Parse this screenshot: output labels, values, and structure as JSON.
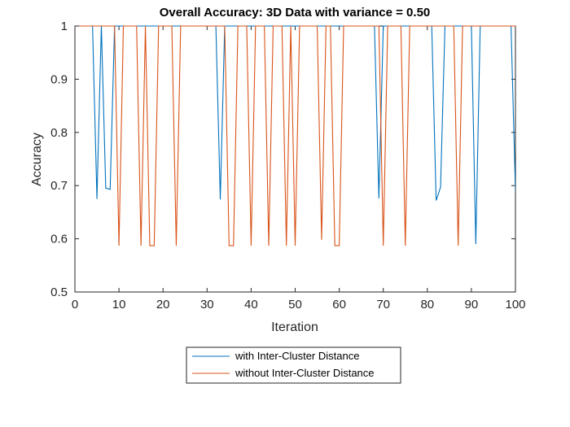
{
  "chart_data": {
    "type": "line",
    "title": "Overall Accuracy: 3D Data with variance = 0.50",
    "xlabel": "Iteration",
    "ylabel": "Accuracy",
    "xlim": [
      0,
      100
    ],
    "ylim": [
      0.5,
      1
    ],
    "xticks": [
      0,
      10,
      20,
      30,
      40,
      50,
      60,
      70,
      80,
      90,
      100
    ],
    "yticks": [
      0.5,
      0.6,
      0.7,
      0.8,
      0.9,
      1
    ],
    "xtick_labels": [
      "0",
      "10",
      "20",
      "30",
      "40",
      "50",
      "60",
      "70",
      "80",
      "90",
      "100"
    ],
    "ytick_labels": [
      "0.5",
      "0.6",
      "0.7",
      "0.8",
      "0.9",
      "1"
    ],
    "grid": false,
    "legend_position": "bottom-outside",
    "series": [
      {
        "name": "with Inter-Cluster Distance",
        "color": "#0072BD",
        "x": [
          1,
          2,
          3,
          4,
          5,
          6,
          7,
          8,
          9,
          10,
          11,
          12,
          13,
          14,
          15,
          16,
          17,
          18,
          19,
          20,
          21,
          22,
          23,
          24,
          25,
          26,
          27,
          28,
          29,
          30,
          31,
          32,
          33,
          34,
          35,
          36,
          37,
          38,
          39,
          40,
          41,
          42,
          43,
          44,
          45,
          46,
          47,
          48,
          49,
          50,
          51,
          52,
          53,
          54,
          55,
          56,
          57,
          58,
          59,
          60,
          61,
          62,
          63,
          64,
          65,
          66,
          67,
          68,
          69,
          70,
          71,
          72,
          73,
          74,
          75,
          76,
          77,
          78,
          79,
          80,
          81,
          82,
          83,
          84,
          85,
          86,
          87,
          88,
          89,
          90,
          91,
          92,
          93,
          94,
          95,
          96,
          97,
          98,
          99,
          100
        ],
        "y": [
          1,
          1,
          1,
          1,
          0.675,
          1,
          0.695,
          0.693,
          1,
          1,
          1,
          1,
          1,
          1,
          1,
          1,
          1,
          1,
          1,
          1,
          1,
          1,
          1,
          1,
          1,
          1,
          1,
          1,
          1,
          1,
          1,
          1,
          0.674,
          1,
          1,
          1,
          1,
          1,
          1,
          1,
          1,
          1,
          1,
          1,
          1,
          1,
          1,
          1,
          1,
          1,
          1,
          1,
          1,
          1,
          1,
          1,
          1,
          1,
          1,
          1,
          1,
          1,
          1,
          1,
          1,
          1,
          1,
          1,
          0.676,
          1,
          1,
          1,
          1,
          1,
          1,
          1,
          1,
          1,
          1,
          1,
          1,
          0.672,
          0.697,
          1,
          1,
          1,
          1,
          1,
          1,
          1,
          0.59,
          1,
          1,
          1,
          1,
          1,
          1,
          1,
          1,
          0.69
        ]
      },
      {
        "name": "without Inter-Cluster Distance",
        "color": "#D95319",
        "x": [
          1,
          2,
          3,
          4,
          5,
          6,
          7,
          8,
          9,
          10,
          11,
          12,
          13,
          14,
          15,
          16,
          17,
          18,
          19,
          20,
          21,
          22,
          23,
          24,
          25,
          26,
          27,
          28,
          29,
          30,
          31,
          32,
          33,
          34,
          35,
          36,
          37,
          38,
          39,
          40,
          41,
          42,
          43,
          44,
          45,
          46,
          47,
          48,
          49,
          50,
          51,
          52,
          53,
          54,
          55,
          56,
          57,
          58,
          59,
          60,
          61,
          62,
          63,
          64,
          65,
          66,
          67,
          68,
          69,
          70,
          71,
          72,
          73,
          74,
          75,
          76,
          77,
          78,
          79,
          80,
          81,
          82,
          83,
          84,
          85,
          86,
          87,
          88,
          89,
          90,
          91,
          92,
          93,
          94,
          95,
          96,
          97,
          98,
          99,
          100
        ],
        "y": [
          1,
          1,
          1,
          1,
          1,
          1,
          1,
          1,
          1,
          0.587,
          1,
          1,
          1,
          1,
          0.587,
          1,
          0.587,
          0.587,
          1,
          1,
          1,
          1,
          0.587,
          1,
          1,
          1,
          1,
          1,
          1,
          1,
          1,
          1,
          1,
          1,
          0.587,
          0.587,
          1,
          1,
          1,
          0.587,
          1,
          1,
          1,
          0.587,
          1,
          1,
          1,
          0.587,
          1,
          0.587,
          1,
          1,
          1,
          1,
          1,
          0.598,
          1,
          1,
          0.587,
          0.587,
          1,
          1,
          1,
          1,
          1,
          1,
          1,
          1,
          1,
          0.587,
          1,
          1,
          1,
          1,
          0.587,
          1,
          1,
          1,
          1,
          1,
          1,
          1,
          1,
          1,
          1,
          1,
          0.587,
          1,
          1,
          1,
          1,
          1,
          1,
          1,
          1,
          1,
          1,
          1,
          1,
          1
        ]
      }
    ]
  }
}
